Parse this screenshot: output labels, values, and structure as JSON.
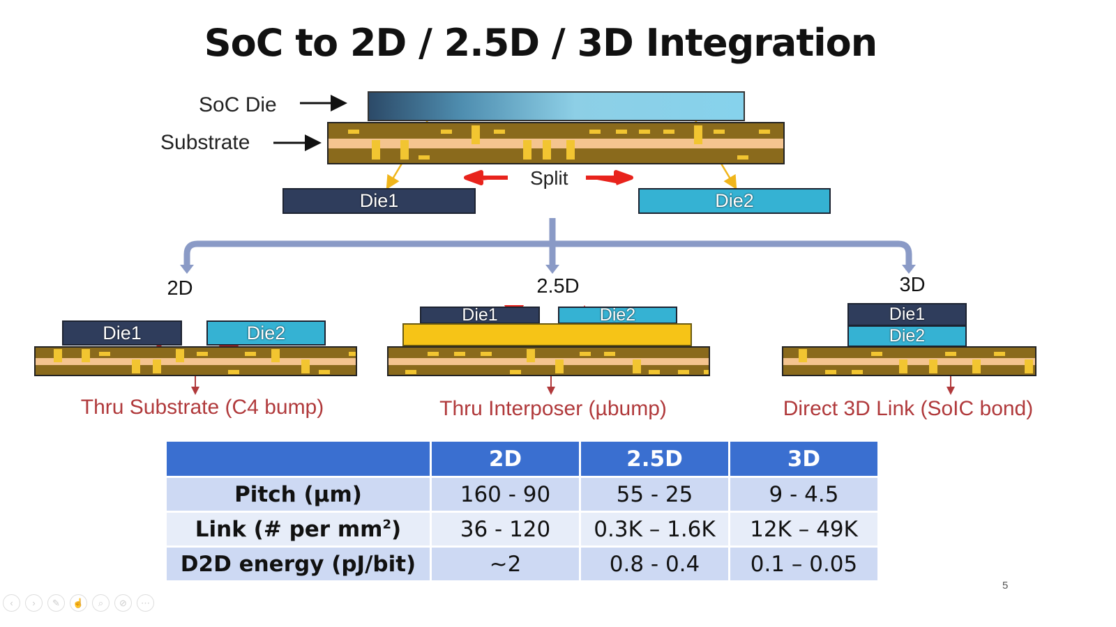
{
  "title": "SoC to 2D / 2.5D / 3D Integration",
  "top": {
    "soc_label": "SoC Die",
    "substrate_label": "Substrate",
    "split_label": "Split",
    "die1": "Die1",
    "die2": "Die2"
  },
  "branches": {
    "d2": {
      "label": "2D",
      "die1": "Die1",
      "die2": "Die2",
      "caption": "Thru Substrate (C4 bump)"
    },
    "d25": {
      "label": "2.5D",
      "die1": "Die1",
      "die2": "Die2",
      "caption": "Thru Interposer (µbump)"
    },
    "d3": {
      "label": "3D",
      "die1": "Die1",
      "die2": "Die2",
      "caption": "Direct 3D Link (SoIC bond)"
    }
  },
  "table": {
    "headers": [
      "",
      "2D",
      "2.5D",
      "3D"
    ],
    "rows": [
      {
        "label": "Pitch (µm)",
        "values": [
          "160 - 90",
          "55 - 25",
          "9 - 4.5"
        ]
      },
      {
        "label": "Link (# per mm",
        "sup": "2",
        "label_end": ")",
        "values": [
          "36 - 120",
          "0.3K – 1.6K",
          "12K – 49K"
        ]
      },
      {
        "label": "D2D energy (pJ/bit)",
        "values": [
          "~2",
          "0.8 - 0.4",
          "0.1 – 0.05"
        ]
      }
    ]
  },
  "page_number": "5",
  "toolbar": [
    "prev-icon",
    "next-icon",
    "pen-icon",
    "pointer-icon",
    "zoom-icon",
    "subtitles-off-icon",
    "more-icon"
  ],
  "colors": {
    "red": "#e8231c",
    "caption": "#b0393b",
    "connector": "#8a9ac6",
    "header": "#3a6fd0"
  }
}
